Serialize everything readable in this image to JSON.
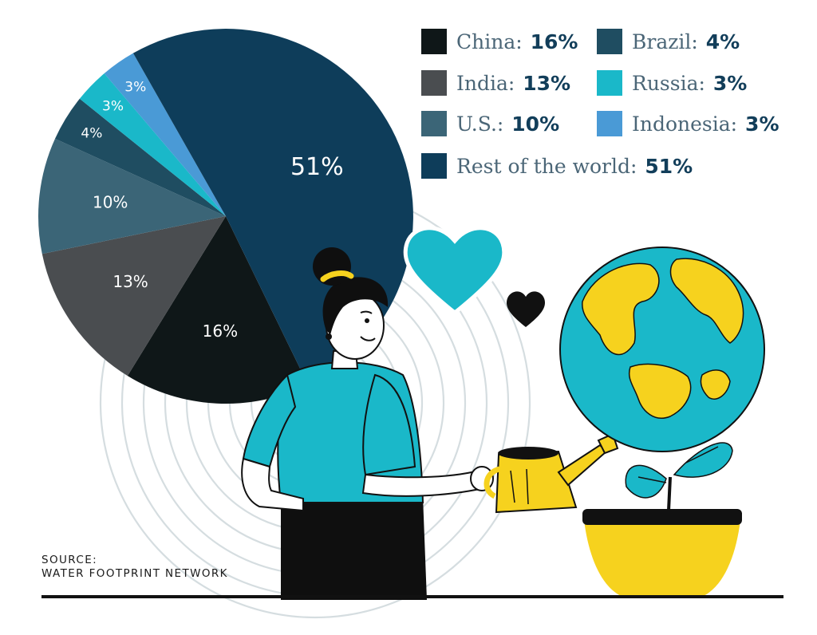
{
  "chart_data": {
    "type": "pie",
    "categories": [
      "China",
      "India",
      "U.S.",
      "Brazil",
      "Russia",
      "Indonesia",
      "Rest of the world"
    ],
    "values": [
      16,
      13,
      10,
      4,
      3,
      3,
      51
    ],
    "slice_labels": [
      "16%",
      "13%",
      "10%",
      "4%",
      "3%",
      "3%",
      "51%"
    ],
    "legend": [
      {
        "label": "China:",
        "value": "16%"
      },
      {
        "label": "India:",
        "value": "13%"
      },
      {
        "label": "U.S.:",
        "value": "10%"
      },
      {
        "label": "Brazil:",
        "value": "4%"
      },
      {
        "label": "Russia:",
        "value": "3%"
      },
      {
        "label": "Indonesia:",
        "value": "3%"
      },
      {
        "label": "Rest of the world:",
        "value": "51%"
      }
    ],
    "colors": [
      "#0f1718",
      "#4a4d50",
      "#3b6577",
      "#1f4d61",
      "#1ab8c9",
      "#4a9ad6",
      "#0e3d5a"
    ],
    "legend_placement": "top-right"
  },
  "source": {
    "line1": "SOURCE:",
    "line2": "WATER FOOTPRINT NETWORK"
  },
  "illustration": {
    "icons": [
      "woman-figure",
      "watering-can-icon",
      "globe-plant-icon",
      "heart-icon-large",
      "heart-icon-small",
      "ripple-rings"
    ],
    "accent_colors": [
      "#1ab8c9",
      "#f6d21e",
      "#0e3d5a"
    ]
  }
}
